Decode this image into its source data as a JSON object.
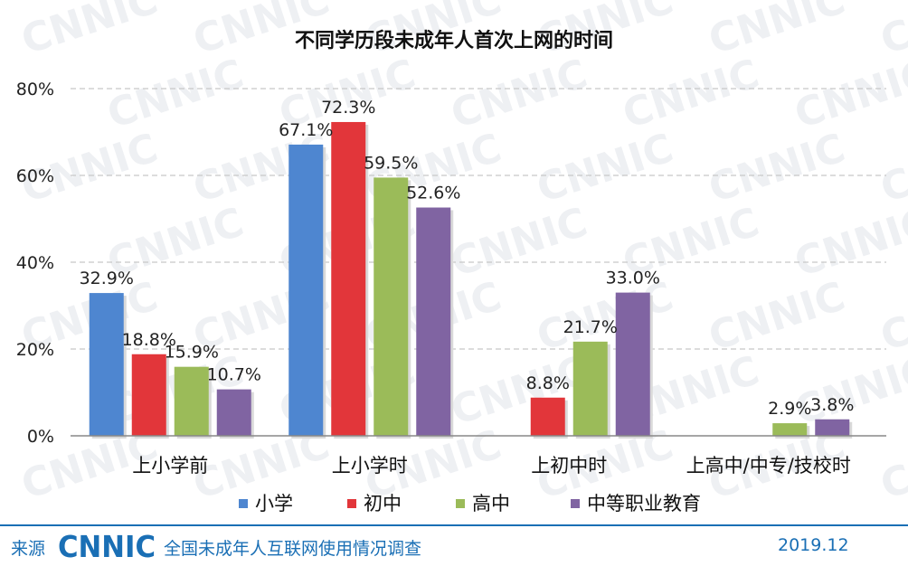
{
  "chart_data": {
    "type": "bar",
    "title": "不同学历段未成年人首次上网的时间",
    "xlabel": "",
    "ylabel": "",
    "ylim": [
      0,
      80
    ],
    "yticks": [
      "0%",
      "20%",
      "40%",
      "60%",
      "80%"
    ],
    "ytick_values": [
      0,
      20,
      40,
      60,
      80
    ],
    "grid": true,
    "legend_position": "bottom",
    "categories": [
      "上小学前",
      "上小学时",
      "上初中时",
      "上高中/中专/技校时"
    ],
    "series": [
      {
        "name": "小学",
        "color": "#4e86d0",
        "values": [
          32.9,
          67.1,
          null,
          null
        ],
        "labels": [
          "32.9%",
          "67.1%",
          "",
          ""
        ]
      },
      {
        "name": "初中",
        "color": "#e2363a",
        "values": [
          18.8,
          72.3,
          8.8,
          null
        ],
        "labels": [
          "18.8%",
          "72.3%",
          "8.8%",
          ""
        ]
      },
      {
        "name": "高中",
        "color": "#9bbb59",
        "values": [
          15.9,
          59.5,
          21.7,
          2.9
        ],
        "labels": [
          "15.9%",
          "59.5%",
          "21.7%",
          "2.9%"
        ]
      },
      {
        "name": "中等职业教育",
        "color": "#8064a2",
        "values": [
          10.7,
          52.6,
          33.0,
          3.8
        ],
        "labels": [
          "10.7%",
          "52.6%",
          "33.0%",
          "3.8%"
        ]
      }
    ]
  },
  "footer": {
    "source_label": "来源",
    "logo_text": "CNNIC",
    "survey_name": "全国未成年人互联网使用情况调查",
    "date": "2019.12",
    "accent_color": "#1a6fb5"
  },
  "watermark": {
    "text": "CNNIC",
    "color": "#eef0f3"
  }
}
